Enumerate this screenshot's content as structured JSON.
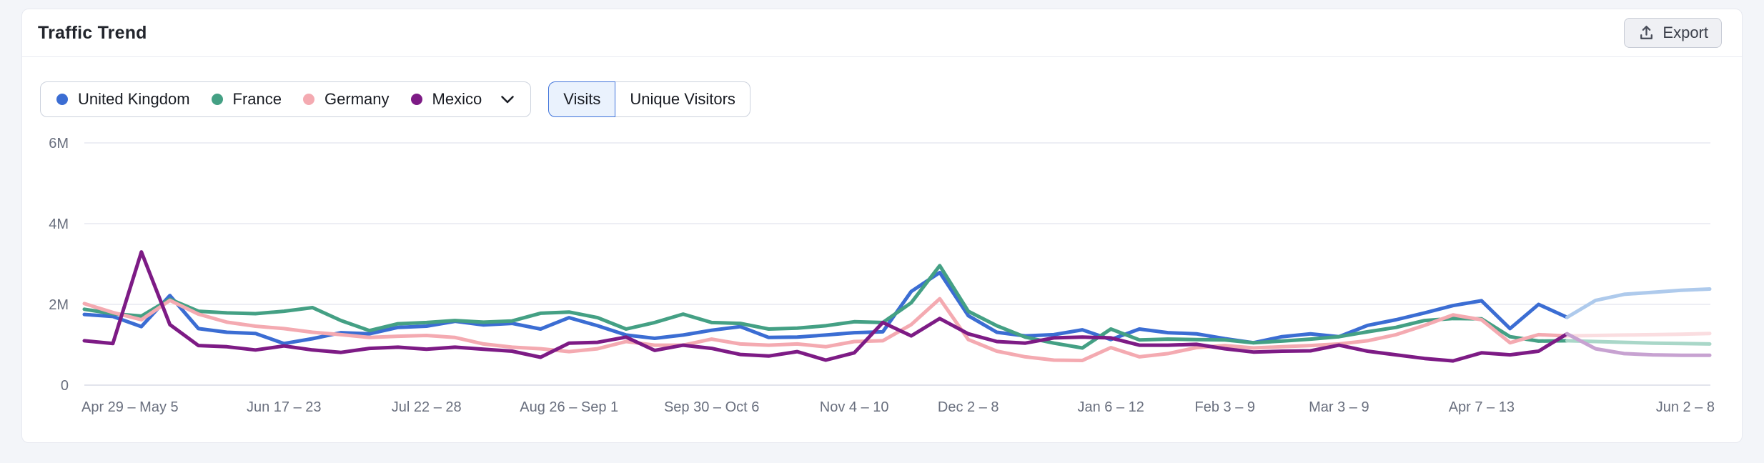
{
  "header": {
    "title": "Traffic Trend",
    "export_label": "Export"
  },
  "legend": {
    "items": [
      {
        "label": "United Kingdom",
        "color": "#3b6dd3"
      },
      {
        "label": "France",
        "color": "#44a084"
      },
      {
        "label": "Germany",
        "color": "#f4aab1"
      },
      {
        "label": "Mexico",
        "color": "#7d1b85"
      }
    ]
  },
  "metric_toggle": {
    "options": [
      {
        "label": "Visits",
        "selected": true
      },
      {
        "label": "Unique Visitors",
        "selected": false
      }
    ]
  },
  "chart_data": {
    "type": "line",
    "title": "Traffic Trend",
    "metric": "Visits",
    "x_granularity": "weekly",
    "values_unit": "millions of visits",
    "ylim_millions": [
      0,
      6
    ],
    "grid": "horizontal",
    "legend_position": "top-left",
    "yticks": [
      {
        "label": "0",
        "value": 0
      },
      {
        "label": "2M",
        "value": 2
      },
      {
        "label": "4M",
        "value": 4
      },
      {
        "label": "6M",
        "value": 6
      }
    ],
    "xticks": [
      {
        "label": "Apr 29 – May 5",
        "index": 0,
        "align": "start"
      },
      {
        "label": "Jun 17 – 23",
        "index": 7,
        "align": "middle"
      },
      {
        "label": "Jul 22 – 28",
        "index": 12,
        "align": "middle"
      },
      {
        "label": "Aug 26 – Sep 1",
        "index": 17,
        "align": "middle"
      },
      {
        "label": "Sep 30 – Oct 6",
        "index": 22,
        "align": "middle"
      },
      {
        "label": "Nov 4 – 10",
        "index": 27,
        "align": "middle"
      },
      {
        "label": "Dec 2 – 8",
        "index": 31,
        "align": "middle"
      },
      {
        "label": "Jan 6 – 12",
        "index": 36,
        "align": "middle"
      },
      {
        "label": "Feb 3 – 9",
        "index": 40,
        "align": "middle"
      },
      {
        "label": "Mar 3 – 9",
        "index": 44,
        "align": "middle"
      },
      {
        "label": "Apr 7 – 13",
        "index": 49,
        "align": "middle"
      },
      {
        "label": "Jun 2 – 8",
        "index": 57,
        "align": "end"
      }
    ],
    "forecast_start_index": 52,
    "series": [
      {
        "name": "United Kingdom",
        "color": "#3b6dd3",
        "forecast_color": "#aecaec",
        "values_millions": [
          1.75,
          1.7,
          1.45,
          2.22,
          1.4,
          1.31,
          1.28,
          1.03,
          1.15,
          1.3,
          1.27,
          1.43,
          1.46,
          1.58,
          1.49,
          1.53,
          1.39,
          1.67,
          1.47,
          1.24,
          1.16,
          1.24,
          1.36,
          1.45,
          1.18,
          1.19,
          1.24,
          1.3,
          1.32,
          2.32,
          2.79,
          1.72,
          1.31,
          1.22,
          1.25,
          1.37,
          1.13,
          1.39,
          1.3,
          1.27,
          1.15,
          1.05,
          1.2,
          1.27,
          1.2,
          1.48,
          1.62,
          1.79,
          1.97,
          2.09,
          1.4,
          2.0,
          1.68,
          2.1,
          2.25,
          2.3,
          2.35,
          2.38
        ]
      },
      {
        "name": "France",
        "color": "#44a084",
        "forecast_color": "#a9d7c8",
        "values_millions": [
          1.88,
          1.77,
          1.71,
          2.13,
          1.83,
          1.79,
          1.77,
          1.83,
          1.92,
          1.6,
          1.35,
          1.52,
          1.55,
          1.6,
          1.56,
          1.59,
          1.78,
          1.81,
          1.67,
          1.39,
          1.55,
          1.76,
          1.55,
          1.53,
          1.39,
          1.41,
          1.47,
          1.57,
          1.55,
          2.04,
          2.96,
          1.83,
          1.47,
          1.19,
          1.04,
          0.92,
          1.39,
          1.12,
          1.14,
          1.13,
          1.12,
          1.05,
          1.09,
          1.14,
          1.2,
          1.32,
          1.43,
          1.6,
          1.65,
          1.64,
          1.2,
          1.09,
          1.1,
          1.08,
          1.06,
          1.04,
          1.03,
          1.02
        ]
      },
      {
        "name": "Germany",
        "color": "#f4aab1",
        "forecast_color": "#fadde0",
        "values_millions": [
          2.02,
          1.8,
          1.62,
          2.1,
          1.76,
          1.56,
          1.46,
          1.4,
          1.31,
          1.25,
          1.18,
          1.21,
          1.23,
          1.18,
          1.02,
          0.94,
          0.9,
          0.83,
          0.9,
          1.08,
          0.99,
          0.99,
          1.14,
          1.02,
          0.99,
          1.02,
          0.95,
          1.08,
          1.1,
          1.5,
          2.14,
          1.13,
          0.84,
          0.7,
          0.62,
          0.61,
          0.93,
          0.7,
          0.78,
          0.93,
          0.98,
          0.92,
          0.95,
          0.98,
          1.02,
          1.1,
          1.25,
          1.48,
          1.74,
          1.62,
          1.05,
          1.25,
          1.22,
          1.23,
          1.24,
          1.25,
          1.26,
          1.28
        ]
      },
      {
        "name": "Mexico",
        "color": "#7d1b85",
        "forecast_color": "#c7a2d1",
        "values_millions": [
          1.1,
          1.03,
          3.3,
          1.5,
          0.98,
          0.95,
          0.87,
          0.97,
          0.87,
          0.81,
          0.91,
          0.94,
          0.89,
          0.94,
          0.89,
          0.84,
          0.69,
          1.04,
          1.06,
          1.19,
          0.86,
          0.99,
          0.91,
          0.76,
          0.72,
          0.83,
          0.62,
          0.8,
          1.55,
          1.22,
          1.65,
          1.27,
          1.08,
          1.04,
          1.17,
          1.19,
          1.17,
          0.99,
          0.99,
          1.01,
          0.9,
          0.82,
          0.84,
          0.85,
          0.99,
          0.84,
          0.75,
          0.66,
          0.6,
          0.8,
          0.75,
          0.84,
          1.27,
          0.9,
          0.78,
          0.75,
          0.74,
          0.74
        ]
      }
    ],
    "style": {
      "gridline_color": "#e7e9f0",
      "baseline_color": "#d8dce5",
      "axis_label_color": "#696f7e",
      "line_width": 5
    }
  }
}
